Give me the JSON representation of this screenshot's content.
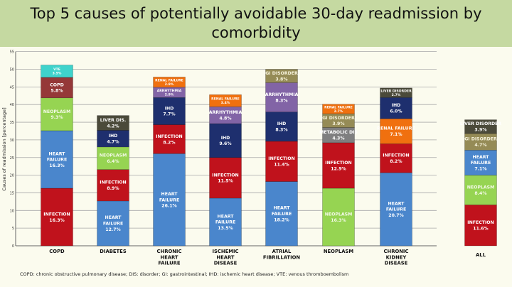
{
  "chart_data": {
    "type": "bar",
    "stacked": true,
    "title": "Top 5 causes of potentially avoidable 30-day readmission by comorbidity",
    "ylabel": "Causes of readmission [percentage]",
    "xlabel": "",
    "ylim": [
      0,
      55
    ],
    "yticks": [
      0,
      5,
      10,
      15,
      20,
      25,
      30,
      35,
      40,
      45,
      50,
      55
    ],
    "grid": true,
    "footnote": "COPD: chronic obstructive pulmonary disease;  DIS: disorder; GI: gastrointestinal; IHD: ischemic heart disease; VTE: venous thromboembolism",
    "colors": {
      "INFECTION": "#c0121c",
      "HEART FAILURE": "#4a86cc",
      "NEOPLASM": "#96d452",
      "COPD": "#953838",
      "VTE": "#3fd3cc",
      "LIVER DIS.": "#4b4a3a",
      "LIVER DISORDER": "#4b4a3a",
      "IHD": "#1e2f6e",
      "RENAL FAILURE": "#f0700f",
      "ARRHYTHMIA": "#8264a6",
      "GI DISORDER": "#958b56",
      "METABOLIC DIS": "#7f7f80"
    },
    "bars": [
      {
        "category": "COPD",
        "segments": [
          {
            "label": "INFECTION",
            "value": 16.3,
            "text": "16.3%"
          },
          {
            "label": "HEART FAILURE",
            "value": 16.3,
            "text": "16.3%"
          },
          {
            "label": "NEOPLASM",
            "value": 9.3,
            "text": "9.3%"
          },
          {
            "label": "COPD",
            "value": 5.8,
            "text": "5.8%"
          },
          {
            "label": "VTE",
            "value": 3.5,
            "text": "3.5%"
          }
        ]
      },
      {
        "category": "DIABETES",
        "segments": [
          {
            "label": "HEART FAILURE",
            "value": 12.7,
            "text": "12.7%"
          },
          {
            "label": "INFECTION",
            "value": 8.9,
            "text": "8.9%"
          },
          {
            "label": "NEOPLASM",
            "value": 6.4,
            "text": "6.4%"
          },
          {
            "label": "IHD",
            "value": 4.7,
            "text": "4.7%"
          },
          {
            "label": "LIVER DIS.",
            "value": 4.2,
            "text": "4.2%"
          }
        ]
      },
      {
        "category": "CHRONIC HEART FAILURE",
        "segments": [
          {
            "label": "HEART FAILURE",
            "value": 26.1,
            "text": "26.1%"
          },
          {
            "label": "INFECTION",
            "value": 8.2,
            "text": "8.2%"
          },
          {
            "label": "IHD",
            "value": 7.7,
            "text": "7.7%"
          },
          {
            "label": "ARRHYTHMIA",
            "value": 2.9,
            "text": "2.9%"
          },
          {
            "label": "RENAL FAILURE",
            "value": 2.9,
            "text": "2.9%"
          }
        ]
      },
      {
        "category": "ISCHEMIC HEART DISEASE",
        "segments": [
          {
            "label": "HEART FAILURE",
            "value": 13.5,
            "text": "13.5%"
          },
          {
            "label": "INFECTION",
            "value": 11.5,
            "text": "11.5%"
          },
          {
            "label": "IHD",
            "value": 9.6,
            "text": "9.6%"
          },
          {
            "label": "ARRHYTHMIA",
            "value": 4.8,
            "text": "4.8%"
          },
          {
            "label": "RENAL FAILURE",
            "value": 3.4,
            "text": "3.4%"
          }
        ]
      },
      {
        "category": "ATRIAL FIBRILLATION",
        "segments": [
          {
            "label": "HEART FAILURE",
            "value": 18.2,
            "text": "18.2%"
          },
          {
            "label": "INFECTION",
            "value": 11.4,
            "text": "11.4%"
          },
          {
            "label": "IHD",
            "value": 8.3,
            "text": "8.3%"
          },
          {
            "label": "ARRHYTHMIA",
            "value": 8.3,
            "text": "8.3%"
          },
          {
            "label": "GI DISORDER",
            "value": 3.8,
            "text": "3.8%"
          }
        ]
      },
      {
        "category": "NEOPLASM",
        "segments": [
          {
            "label": "NEOPLASM",
            "value": 16.3,
            "text": "16.3%"
          },
          {
            "label": "INFECTION",
            "value": 12.9,
            "text": "12.9%"
          },
          {
            "label": "METABOLIC DIS",
            "value": 4.3,
            "text": "4.3%"
          },
          {
            "label": "GI DISORDER",
            "value": 3.9,
            "text": "3.9%"
          },
          {
            "label": "RENAL FAILURE",
            "value": 2.7,
            "text": "2.7%"
          }
        ]
      },
      {
        "category": "CHRONIC KIDNEY DISEASE",
        "segments": [
          {
            "label": "HEART FAILURE",
            "value": 20.7,
            "text": "20.7%"
          },
          {
            "label": "INFECTION",
            "value": 8.2,
            "text": "8.2%"
          },
          {
            "label": "RENAL FAILURE",
            "value": 7.1,
            "text": "7.1%"
          },
          {
            "label": "IHD",
            "value": 6.0,
            "text": "6.0%"
          },
          {
            "label": "LIVER DISORDER",
            "value": 2.7,
            "text": "2.7%"
          }
        ]
      },
      {
        "category": "ALL",
        "segments": [
          {
            "label": "INFECTION",
            "value": 11.6,
            "text": "11.6%"
          },
          {
            "label": "NEOPLASM",
            "value": 8.4,
            "text": "8.4%"
          },
          {
            "label": "HEART FAILURE",
            "value": 7.1,
            "text": "7.1%"
          },
          {
            "label": "GI DISORDER",
            "value": 4.7,
            "text": "4.7%"
          },
          {
            "label": "LIVER DISORDER",
            "value": 3.9,
            "text": "3.9%"
          }
        ]
      }
    ]
  }
}
